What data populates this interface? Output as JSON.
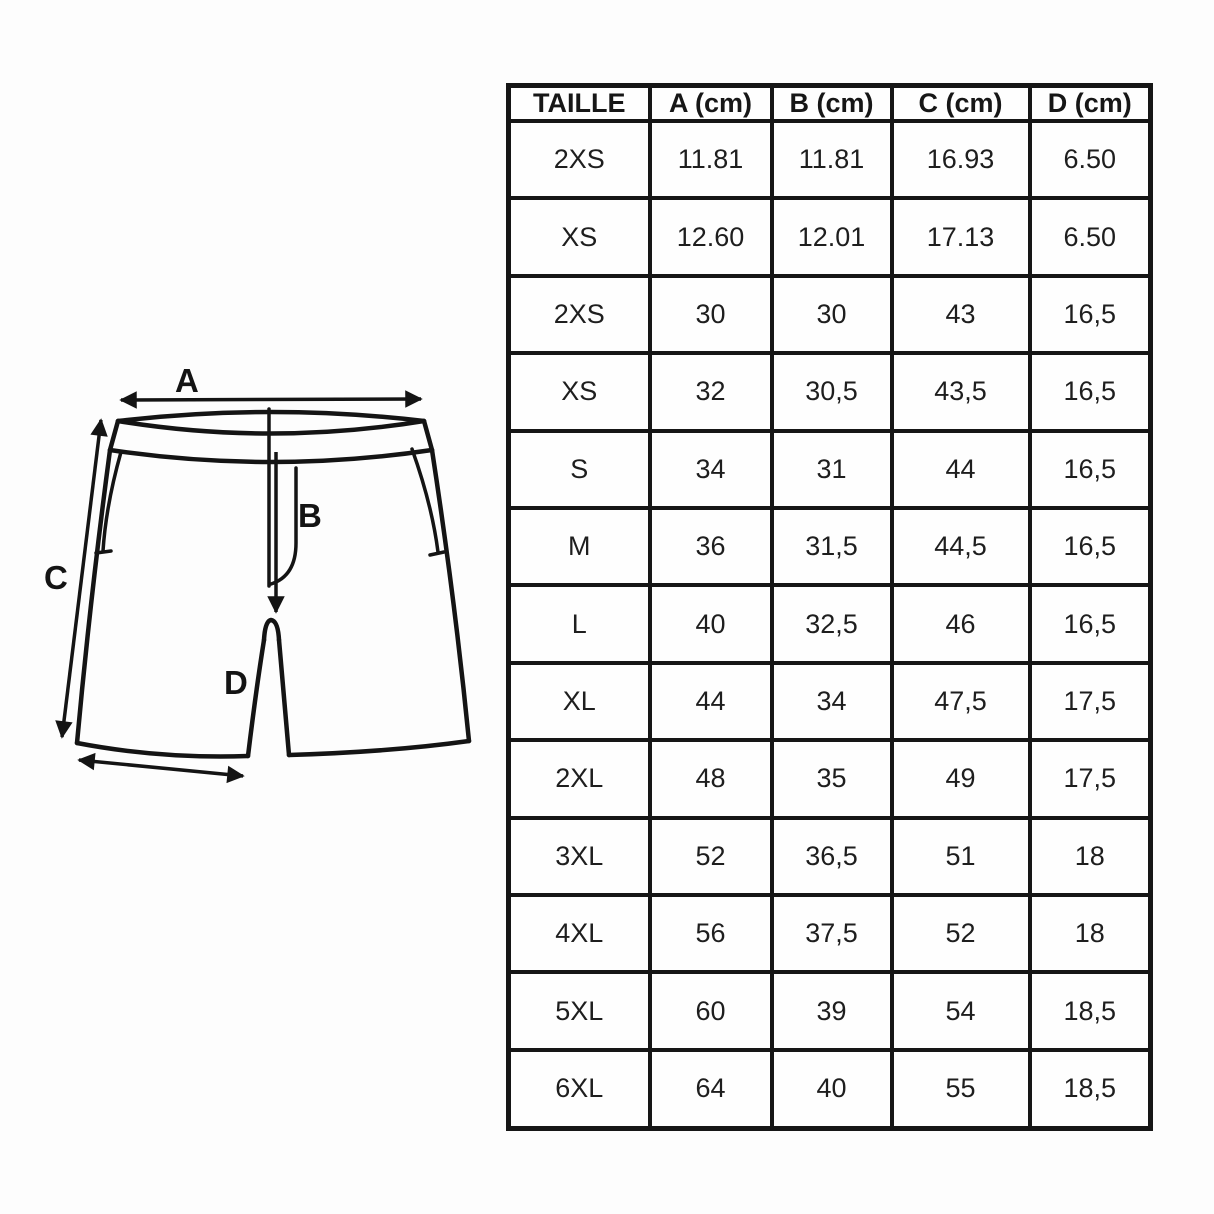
{
  "page": {
    "background": "#fdfdfd",
    "line_color": "#141414",
    "text_color": "#1e1e1e",
    "cell_background": "#fefefe"
  },
  "diagram": {
    "description_labels": {
      "a": "A",
      "b": "B",
      "c": "C",
      "d": "D"
    }
  },
  "table": {
    "columns": [
      "TAILLE",
      "A (cm)",
      "B (cm)",
      "C (cm)",
      "D (cm)"
    ],
    "rows": [
      [
        "2XS",
        "11.81",
        "11.81",
        "16.93",
        "6.50"
      ],
      [
        "XS",
        "12.60",
        "12.01",
        "17.13",
        "6.50"
      ],
      [
        "2XS",
        "30",
        "30",
        "43",
        "16,5"
      ],
      [
        "XS",
        "32",
        "30,5",
        "43,5",
        "16,5"
      ],
      [
        "S",
        "34",
        "31",
        "44",
        "16,5"
      ],
      [
        "M",
        "36",
        "31,5",
        "44,5",
        "16,5"
      ],
      [
        "L",
        "40",
        "32,5",
        "46",
        "16,5"
      ],
      [
        "XL",
        "44",
        "34",
        "47,5",
        "17,5"
      ],
      [
        "2XL",
        "48",
        "35",
        "49",
        "17,5"
      ],
      [
        "3XL",
        "52",
        "36,5",
        "51",
        "18"
      ],
      [
        "4XL",
        "56",
        "37,5",
        "52",
        "18"
      ],
      [
        "5XL",
        "60",
        "39",
        "54",
        "18,5"
      ],
      [
        "6XL",
        "64",
        "40",
        "55",
        "18,5"
      ]
    ]
  }
}
